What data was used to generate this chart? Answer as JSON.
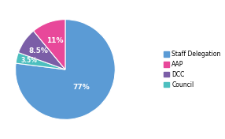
{
  "labels": [
    "Staff Delegation",
    "Council",
    "DCC",
    "AAP"
  ],
  "values": [
    77,
    3.5,
    8.5,
    11
  ],
  "colors": [
    "#5b9bd5",
    "#4dbfbf",
    "#7b5ea7",
    "#e8489a"
  ],
  "pct_labels": [
    "77%",
    "3.5%",
    "8.5%",
    "11%"
  ],
  "background_color": "#ffffff",
  "startangle": 90,
  "legend_labels": [
    "Staff Delegation",
    "AAP",
    "DCC",
    "Council"
  ],
  "legend_colors": [
    "#5b9bd5",
    "#e8489a",
    "#7b5ea7",
    "#4dbfbf"
  ]
}
